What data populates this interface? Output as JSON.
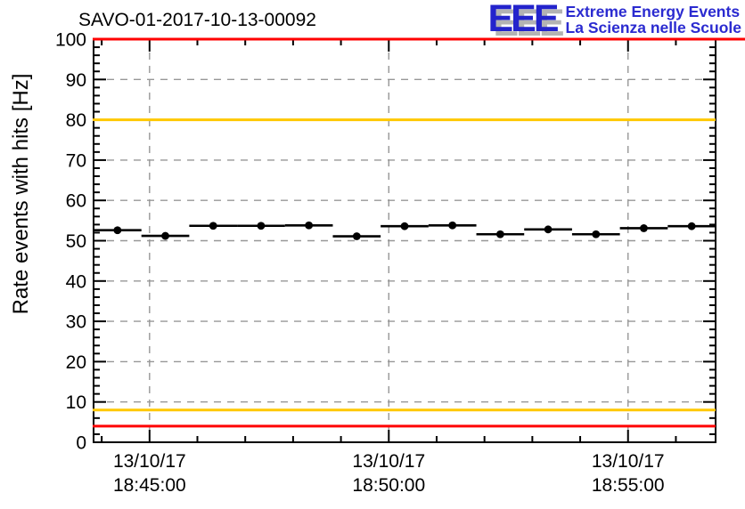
{
  "title": "SAVO-01-2017-10-13-00092",
  "logo": {
    "acronym": "EEE",
    "tagline_en": "Extreme Energy Events",
    "tagline_it": "La Scienza nelle Scuole",
    "blue": "#2323cc",
    "shadow_gray": "#b3b3b3"
  },
  "chart_data": {
    "type": "scatter",
    "title": "SAVO-01-2017-10-13-00092",
    "xlabel": "",
    "ylabel": "Rate events with hits [Hz]",
    "ylim": [
      0,
      100
    ],
    "y_major_step": 10,
    "y_minor_step": 2,
    "grid": true,
    "x_range_minutes": [
      0,
      13
    ],
    "x_minor_step_minutes": 1,
    "x_minor_offset_minutes": 0.17,
    "x_major_ticks": [
      {
        "x_min": 1.17,
        "date": "13/10/17",
        "time": "18:45:00"
      },
      {
        "x_min": 6.17,
        "date": "13/10/17",
        "time": "18:50:00"
      },
      {
        "x_min": 11.17,
        "date": "13/10/17",
        "time": "18:55:00"
      }
    ],
    "series": [
      {
        "name": "rate-events-with-hits",
        "marker": "filled-circle",
        "color": "#000000",
        "x_error_minutes": 0.5,
        "points": [
          {
            "x_min": 0.5,
            "y": 52.6
          },
          {
            "x_min": 1.5,
            "y": 51.2
          },
          {
            "x_min": 2.5,
            "y": 53.7
          },
          {
            "x_min": 3.5,
            "y": 53.7
          },
          {
            "x_min": 4.5,
            "y": 53.8
          },
          {
            "x_min": 5.5,
            "y": 51.1
          },
          {
            "x_min": 6.5,
            "y": 53.6
          },
          {
            "x_min": 7.5,
            "y": 53.8
          },
          {
            "x_min": 8.5,
            "y": 51.6
          },
          {
            "x_min": 9.5,
            "y": 52.8
          },
          {
            "x_min": 10.5,
            "y": 51.6
          },
          {
            "x_min": 11.5,
            "y": 53.1
          },
          {
            "x_min": 12.5,
            "y": 53.6
          }
        ]
      }
    ],
    "threshold_lines": [
      {
        "y": 100,
        "color": "#ff0000",
        "extends_past_frame": true
      },
      {
        "y": 80,
        "color": "#ffc800",
        "extends_past_frame": false
      },
      {
        "y": 8,
        "color": "#ffc800",
        "extends_past_frame": false
      },
      {
        "y": 4,
        "color": "#ff0000",
        "extends_past_frame": false
      }
    ],
    "colors": {
      "grid": "#979797",
      "axis": "#000000",
      "frame": "#000000"
    },
    "legend": null
  }
}
